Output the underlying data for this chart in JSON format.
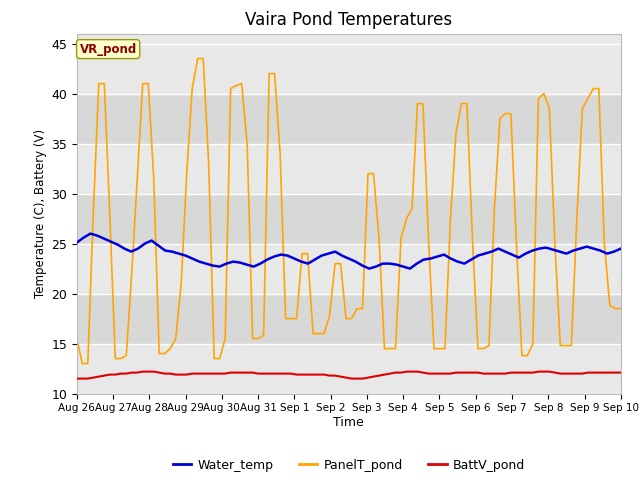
{
  "title": "Vaira Pond Temperatures",
  "xlabel": "Time",
  "ylabel": "Temperature (C), Battery (V)",
  "ylim": [
    10,
    46
  ],
  "yticks": [
    10,
    15,
    20,
    25,
    30,
    35,
    40,
    45
  ],
  "legend_label": "VR_pond",
  "background_color": "#ffffff",
  "plot_bg_color": "#e8e8e8",
  "band_color_light": "#e8e8e8",
  "band_color_dark": "#d8d8d8",
  "grid_color": "#ffffff",
  "water_color": "#0000dd",
  "panel_color": "#ffa500",
  "batt_color": "#dd0000",
  "total_days": 15,
  "tick_labels": [
    "Aug 26",
    "Aug 27",
    "Aug 28",
    "Aug 29",
    "Aug 30",
    "Aug 31",
    "Sep 1",
    "Sep 2",
    "Sep 3",
    "Sep 4",
    "Sep 5",
    "Sep 6",
    "Sep 7",
    "Sep 8",
    "Sep 9",
    "Sep 10"
  ],
  "water_temp": [
    25.1,
    25.6,
    26.0,
    25.8,
    25.5,
    25.2,
    24.9,
    24.5,
    24.2,
    24.5,
    25.0,
    25.3,
    24.8,
    24.3,
    24.2,
    24.0,
    23.8,
    23.5,
    23.2,
    23.0,
    22.8,
    22.7,
    23.0,
    23.2,
    23.1,
    22.9,
    22.7,
    23.0,
    23.4,
    23.7,
    23.9,
    23.8,
    23.5,
    23.2,
    23.0,
    23.4,
    23.8,
    24.0,
    24.2,
    23.8,
    23.5,
    23.2,
    22.8,
    22.5,
    22.7,
    23.0,
    23.0,
    22.9,
    22.7,
    22.5,
    23.0,
    23.4,
    23.5,
    23.7,
    23.9,
    23.5,
    23.2,
    23.0,
    23.4,
    23.8,
    24.0,
    24.2,
    24.5,
    24.2,
    23.9,
    23.6,
    24.0,
    24.3,
    24.5,
    24.6,
    24.4,
    24.2,
    24.0,
    24.3,
    24.5,
    24.7,
    24.5,
    24.3,
    24.0,
    24.2,
    24.5
  ],
  "panel_temp": [
    15.5,
    13.0,
    13.0,
    28.0,
    41.0,
    41.0,
    28.0,
    13.5,
    13.5,
    13.8,
    22.0,
    31.5,
    41.0,
    41.0,
    31.5,
    14.0,
    14.0,
    14.5,
    15.5,
    21.0,
    32.0,
    40.5,
    43.5,
    43.5,
    33.0,
    13.5,
    13.5,
    15.5,
    40.5,
    40.8,
    41.0,
    35.0,
    15.5,
    15.5,
    15.8,
    42.0,
    42.0,
    34.0,
    17.5,
    17.5,
    17.5,
    24.0,
    24.0,
    16.0,
    16.0,
    16.0,
    17.8,
    23.0,
    23.0,
    17.5,
    17.5,
    18.5,
    18.5,
    32.0,
    32.0,
    25.5,
    14.5,
    14.5,
    14.5,
    25.5,
    27.5,
    28.5,
    39.0,
    39.0,
    25.5,
    14.5,
    14.5,
    14.5,
    27.5,
    36.0,
    39.0,
    39.0,
    25.5,
    14.5,
    14.5,
    14.8,
    28.5,
    37.5,
    38.0,
    38.0,
    25.0,
    13.8,
    13.8,
    15.0,
    39.5,
    40.0,
    38.5,
    25.0,
    14.8,
    14.8,
    14.8,
    27.5,
    38.5,
    39.5,
    40.5,
    40.5,
    25.0,
    18.8,
    18.5,
    18.5
  ],
  "batt_temp": [
    11.5,
    11.5,
    11.5,
    11.6,
    11.7,
    11.8,
    11.9,
    11.9,
    12.0,
    12.0,
    12.1,
    12.1,
    12.2,
    12.2,
    12.2,
    12.1,
    12.0,
    12.0,
    11.9,
    11.9,
    11.9,
    12.0,
    12.0,
    12.0,
    12.0,
    12.0,
    12.0,
    12.0,
    12.1,
    12.1,
    12.1,
    12.1,
    12.1,
    12.0,
    12.0,
    12.0,
    12.0,
    12.0,
    12.0,
    12.0,
    11.9,
    11.9,
    11.9,
    11.9,
    11.9,
    11.9,
    11.8,
    11.8,
    11.7,
    11.6,
    11.5,
    11.5,
    11.5,
    11.6,
    11.7,
    11.8,
    11.9,
    12.0,
    12.1,
    12.1,
    12.2,
    12.2,
    12.2,
    12.1,
    12.0,
    12.0,
    12.0,
    12.0,
    12.0,
    12.1,
    12.1,
    12.1,
    12.1,
    12.1,
    12.0,
    12.0,
    12.0,
    12.0,
    12.0,
    12.1,
    12.1,
    12.1,
    12.1,
    12.1,
    12.2,
    12.2,
    12.2,
    12.1,
    12.0,
    12.0,
    12.0,
    12.0,
    12.0,
    12.1,
    12.1,
    12.1,
    12.1,
    12.1,
    12.1,
    12.1
  ]
}
